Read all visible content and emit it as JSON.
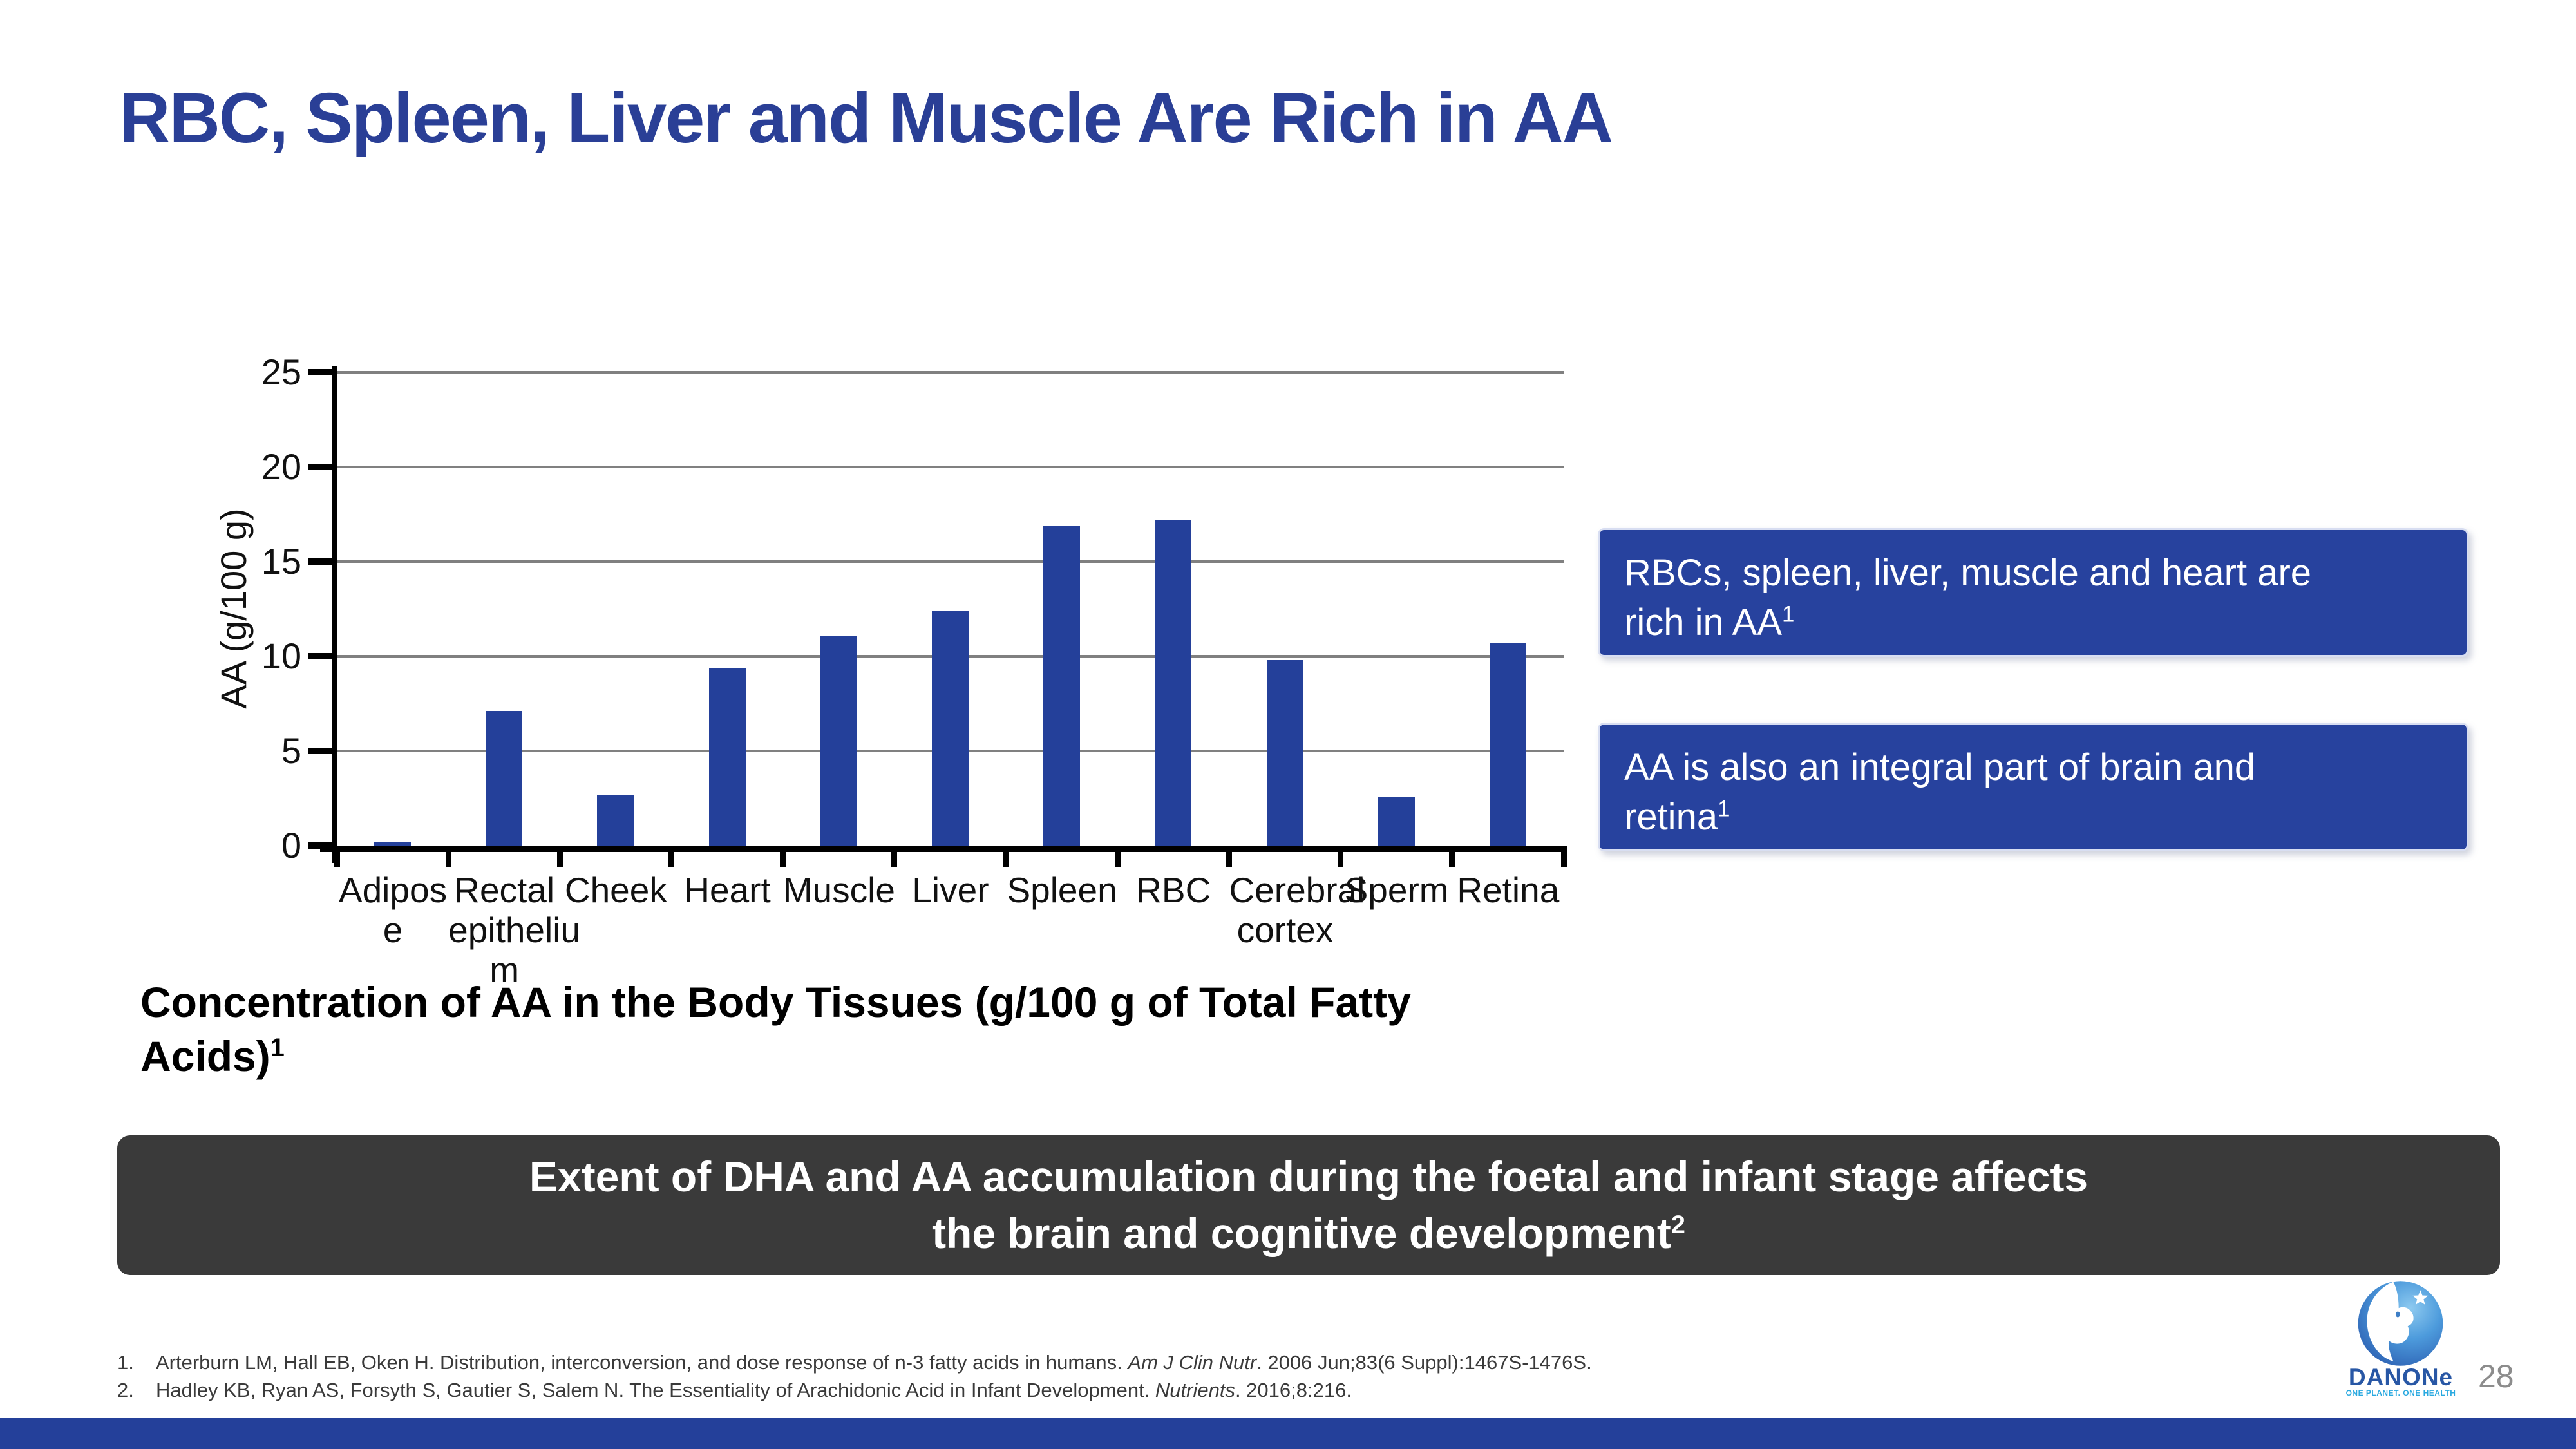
{
  "slide": {
    "title": "RBC, Spleen, Liver and Muscle Are Rich in AA",
    "page_number": "28"
  },
  "chart_data": {
    "type": "bar",
    "title": "",
    "xlabel": "",
    "ylabel": "AA (g/100 g)",
    "ylim": [
      0,
      25
    ],
    "yticks": [
      0,
      5,
      10,
      15,
      20,
      25
    ],
    "grid": true,
    "legend": "none",
    "bar_color": "#24409A",
    "categories": [
      "Adipos\ne",
      "Rectal\nepitheliu\nm",
      "Cheek",
      "Heart",
      "Muscle",
      "Liver",
      "Spleen",
      "RBC",
      "Cerebral\ncortex",
      "Sperm",
      "Retina"
    ],
    "values": [
      0.2,
      7.1,
      2.7,
      9.4,
      11.1,
      12.4,
      16.9,
      17.2,
      9.8,
      2.6,
      10.7
    ]
  },
  "caption": {
    "text": "Concentration of AA in the Body Tissues (g/100 g of Total Fatty\nAcids)",
    "sup": "1"
  },
  "callouts": [
    {
      "text": "RBCs, spleen, liver, muscle and heart are\nrich in AA",
      "sup": "1"
    },
    {
      "text": "AA is also an integral part of brain and\nretina",
      "sup": "1"
    }
  ],
  "banner": {
    "line1": "Extent of DHA and AA accumulation during the foetal and infant stage affects",
    "line2": "the brain and cognitive development",
    "sup": "2"
  },
  "references": [
    {
      "num": "1.",
      "pre": "Arterburn LM, Hall EB, Oken H. Distribution, interconversion, and dose response of n-3 fatty acids in humans. ",
      "journal": "Am J Clin Nutr",
      "post": ". 2006 Jun;83(6 Suppl):1467S-1476S."
    },
    {
      "num": "2.",
      "pre": "Hadley KB, Ryan AS, Forsyth S, Gautier S, Salem N. The Essentiality of Arachidonic Acid in Infant Development. ",
      "journal": "Nutrients",
      "post": ". 2016;8:216."
    }
  ],
  "logo": {
    "brand": "DANONe",
    "tagline": "ONE PLANET. ONE HEALTH"
  },
  "colors": {
    "accent_blue": "#24409A",
    "title_blue": "#2A3F96",
    "callout_blue": "#27429E",
    "callout_border": "#D8DEF2",
    "banner_gray": "#3A3A3A",
    "grid_gray": "#808080",
    "page_gray": "#8C8C8C"
  }
}
